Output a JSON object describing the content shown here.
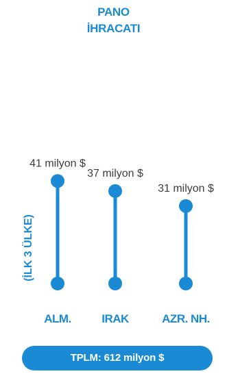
{
  "title": {
    "line1": "PANO",
    "line2": "İHRACATI"
  },
  "chart_data": {
    "type": "lollipop",
    "ylabel": "(İLK 3 ÜLKE)",
    "categories": [
      "ALM.",
      "IRAK",
      "AZR. NH."
    ],
    "values": [
      41,
      37,
      31
    ],
    "value_labels": [
      "41 milyon $",
      "37 milyon $",
      "31 milyon $"
    ],
    "baseline": 0,
    "color": "#1a8ad4"
  },
  "footer": {
    "total_label": "TPLM: 612 milyon $"
  },
  "colors": {
    "accent": "#1a8ad4",
    "text": "#3d3d3d",
    "background": "#ffffff"
  }
}
